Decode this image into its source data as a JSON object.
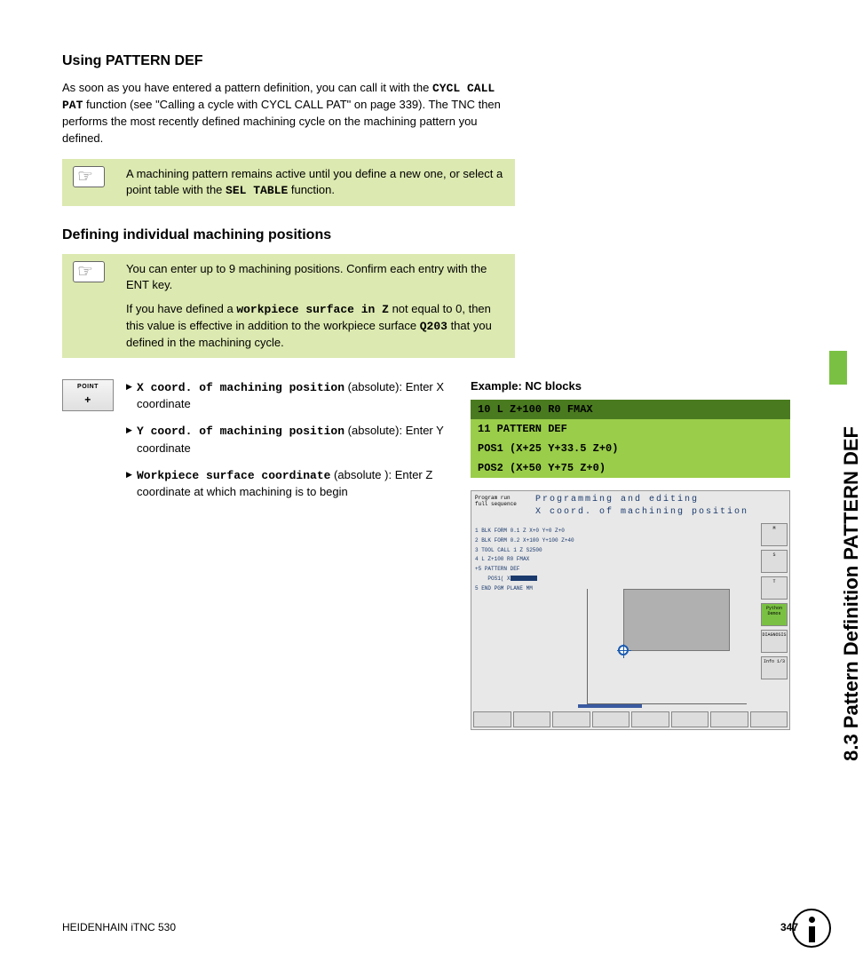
{
  "sideTab": "8.3 Pattern Definition PATTERN DEF",
  "h1": "Using PATTERN DEF",
  "p1a": "As soon as you have entered a pattern definition, you can call it with the ",
  "p1b": "CYCL CALL PAT",
  "p1c": " function (see \"Calling a cycle with CYCL CALL PAT\" on page 339). The TNC then performs the most recently defined machining cycle on the machining pattern you defined.",
  "note1a": "A machining pattern remains active until you define a new one, or select a point table with the ",
  "note1b": "SEL TABLE",
  "note1c": " function.",
  "h2": "Defining individual machining positions",
  "note2p1": "You can enter up to 9 machining positions. Confirm each entry with the ENT key.",
  "note2p2a": "If you have defined a ",
  "note2p2b": "workpiece surface in Z",
  "note2p2c": " not equal to 0, then this value is effective in addition to the workpiece surface ",
  "note2p2d": "Q203",
  "note2p2e": " that you defined in the machining cycle.",
  "pointLabel": "POINT",
  "param1a": "X coord. of machining position",
  "param1b": " (absolute): Enter X coordinate",
  "param2a": "Y coord. of machining position",
  "param2b": " (absolute): Enter Y coordinate",
  "param3a": "Workpiece surface coordinate",
  "param3b": " (absolute ): Enter Z coordinate at which machining is to begin",
  "exampleHdr": "Example: NC blocks",
  "code1": "10 L Z+100 R0 FMAX",
  "code2": "11 PATTERN DEF",
  "code3": "POS1 (X+25 Y+33.5 Z+0)",
  "code4": "POS2 (X+50 Y+75 Z+0)",
  "scr": {
    "mode1": "Program run",
    "mode2": "full sequence",
    "title": "Programming and editing",
    "subtitle": "X coord. of machining position",
    "l1": "1  BLK FORM 0.1 Z  X+0  Y+0  Z+0",
    "l2": "2  BLK FORM 0.2  X+100  Y+100  Z+40",
    "l3": "3  TOOL CALL 1 Z S2500",
    "l4": "4  L  Z+100 R0 FMAX",
    "l5": "+5  PATTERN DEF",
    "l6": "POS1( X",
    "l7": "5  END PGM PLANE MM",
    "btnM": "M",
    "btnS": "S",
    "btnT": "T",
    "btnPy1": "Python",
    "btnPy2": "Demos",
    "btnDiag": "DIAGNOSIS",
    "btnInfo": "Info 1/3"
  },
  "footerLeft": "HEIDENHAIN iTNC 530",
  "footerRight": "347",
  "colors": {
    "noteGreen": "#dce9b0",
    "codeDark": "#4a7a1f",
    "codeLight": "#9acd4a",
    "tabGreen": "#7ac143",
    "scrBlue": "#1a3a6e"
  }
}
